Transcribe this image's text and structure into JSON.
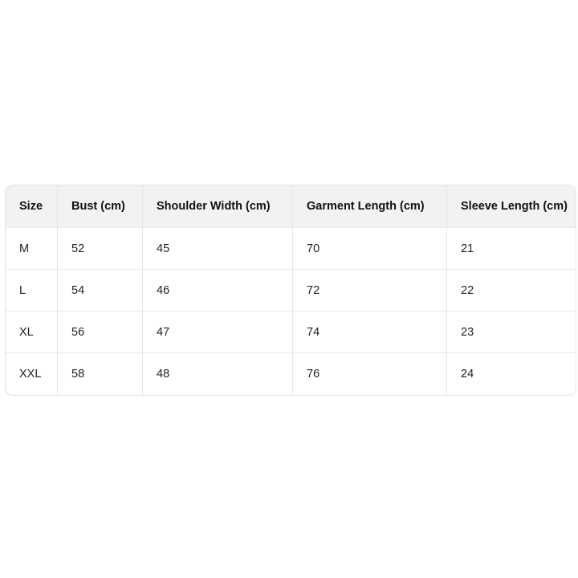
{
  "table": {
    "headers": [
      "Size",
      "Bust (cm)",
      "Shoulder Width (cm)",
      "Garment Length (cm)",
      "Sleeve Length (cm)"
    ],
    "rows": [
      [
        "M",
        "52",
        "45",
        "70",
        "21"
      ],
      [
        "L",
        "54",
        "46",
        "72",
        "22"
      ],
      [
        "XL",
        "56",
        "47",
        "74",
        "23"
      ],
      [
        "XXL",
        "58",
        "48",
        "76",
        "24"
      ]
    ]
  }
}
